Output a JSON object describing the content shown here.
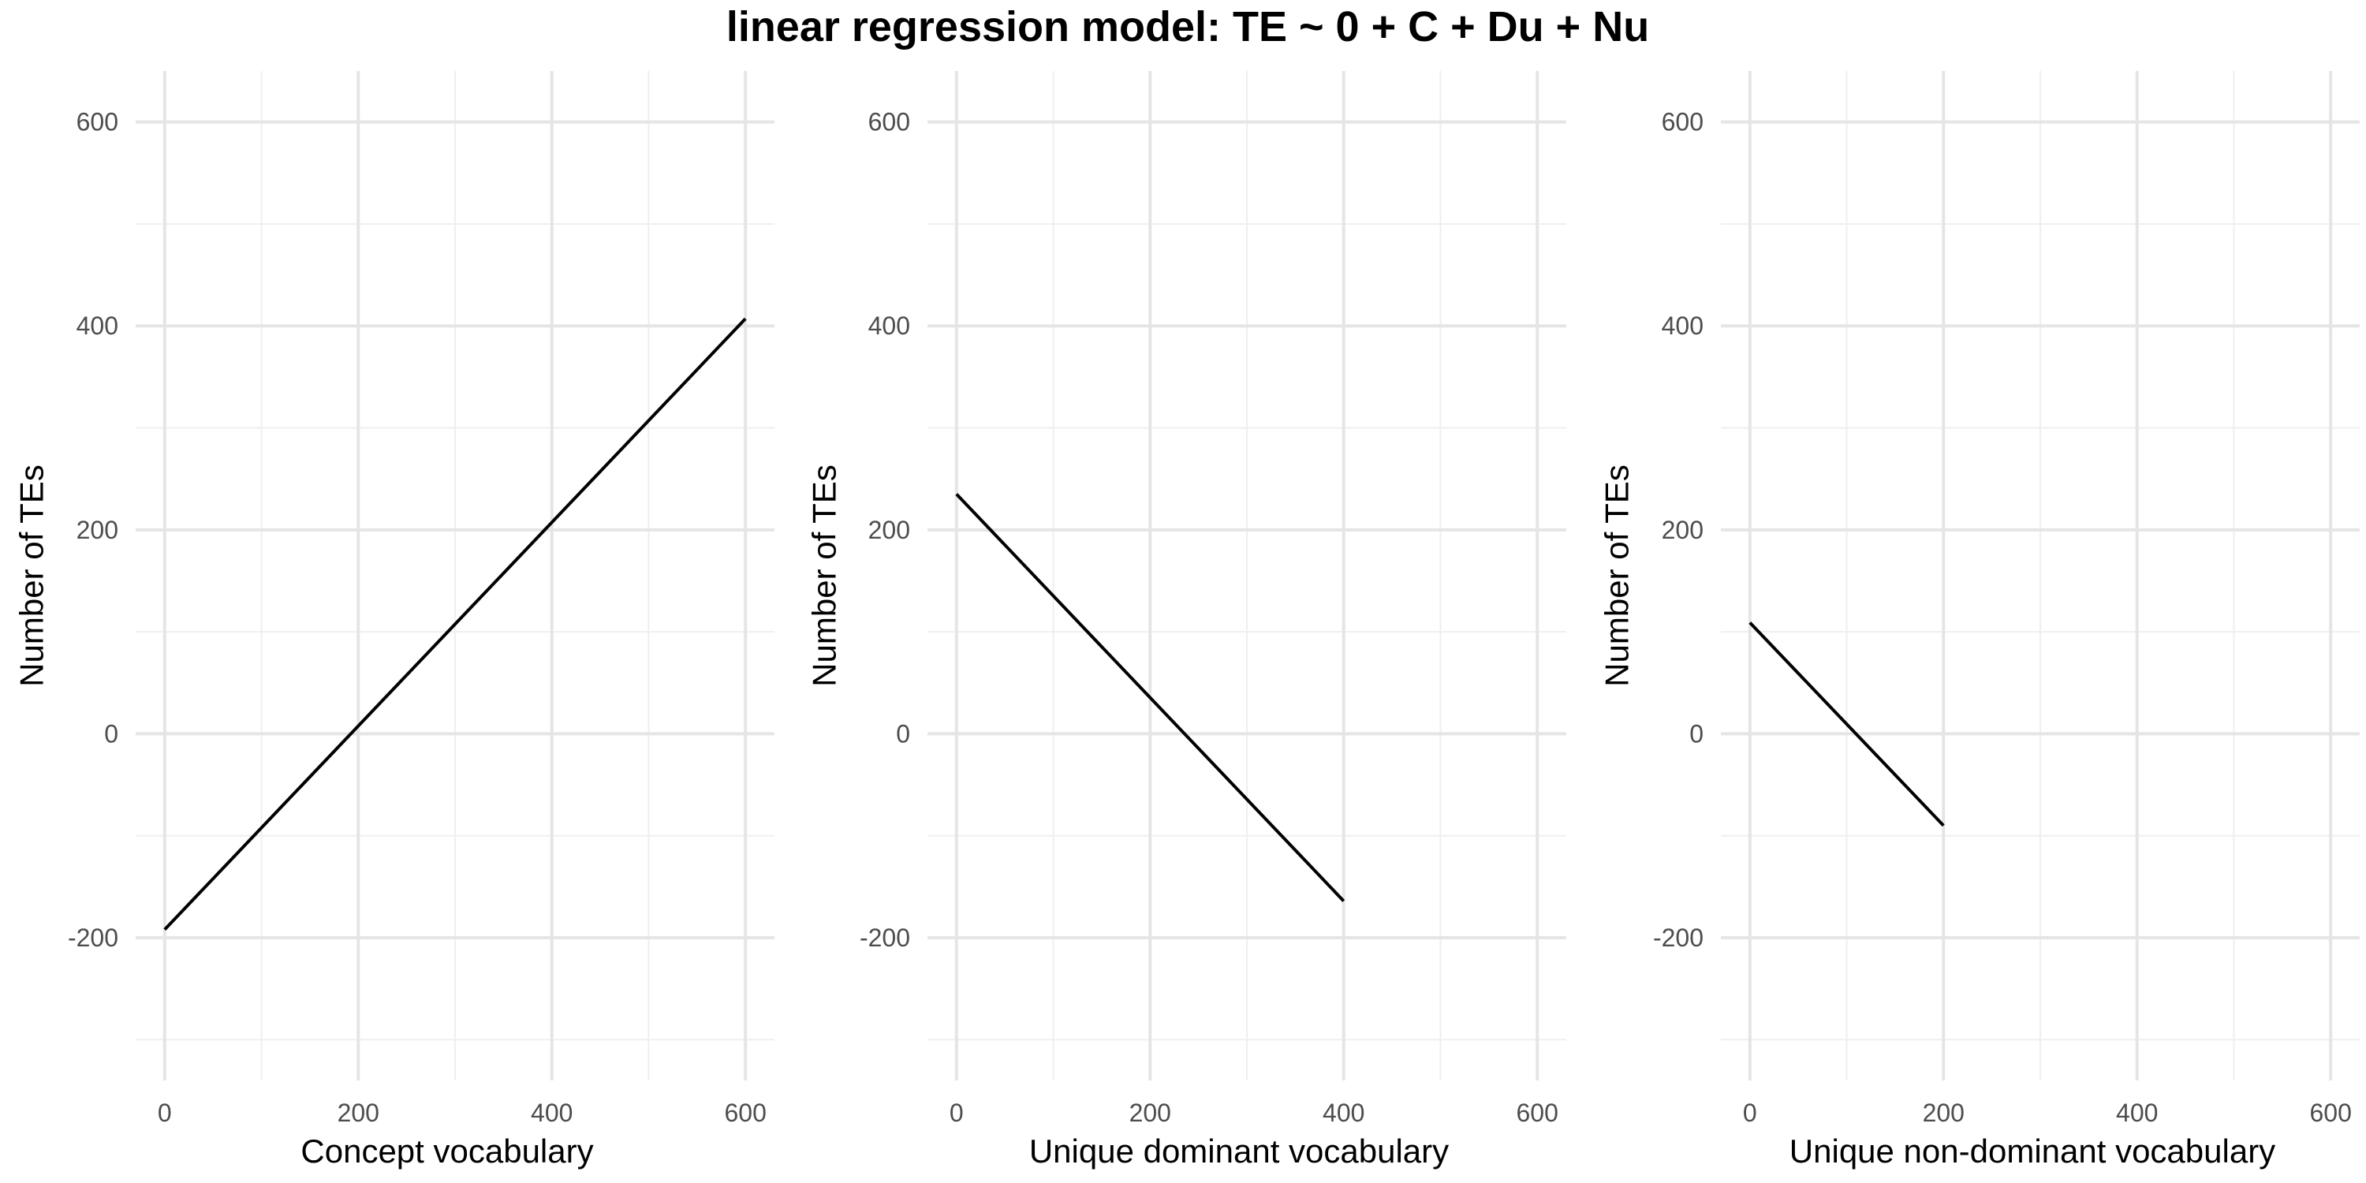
{
  "title": "linear regression model: TE ~ 0 + C + Du + Nu",
  "colors": {
    "background": "#ffffff",
    "grid_major": "#e5e5e5",
    "grid_minor": "#efefef",
    "line": "#000000",
    "tick_text": "#4d4d4d",
    "axis_text": "#000000"
  },
  "chart_data": [
    {
      "type": "line",
      "xlabel": "Concept vocabulary",
      "ylabel": "Number of TEs",
      "xlim": [
        -30,
        630
      ],
      "ylim": [
        -340,
        650
      ],
      "x_ticks": [
        0,
        200,
        400,
        600
      ],
      "y_ticks": [
        -200,
        0,
        200,
        400,
        600
      ],
      "grid": true,
      "series": [
        {
          "x": [
            0,
            600
          ],
          "y": [
            -192,
            407
          ]
        }
      ]
    },
    {
      "type": "line",
      "xlabel": "Unique dominant vocabulary",
      "ylabel": "Number of TEs",
      "xlim": [
        -30,
        630
      ],
      "ylim": [
        -340,
        650
      ],
      "x_ticks": [
        0,
        200,
        400,
        600
      ],
      "y_ticks": [
        -200,
        0,
        200,
        400,
        600
      ],
      "grid": true,
      "series": [
        {
          "x": [
            0,
            400
          ],
          "y": [
            235,
            -164
          ]
        }
      ]
    },
    {
      "type": "line",
      "xlabel": "Unique non-dominant vocabulary",
      "ylabel": "Number of TEs",
      "xlim": [
        -30,
        630
      ],
      "ylim": [
        -340,
        650
      ],
      "x_ticks": [
        0,
        200,
        400,
        600
      ],
      "y_ticks": [
        -200,
        0,
        200,
        400,
        600
      ],
      "grid": true,
      "series": [
        {
          "x": [
            0,
            200
          ],
          "y": [
            109,
            -90
          ]
        }
      ]
    }
  ]
}
